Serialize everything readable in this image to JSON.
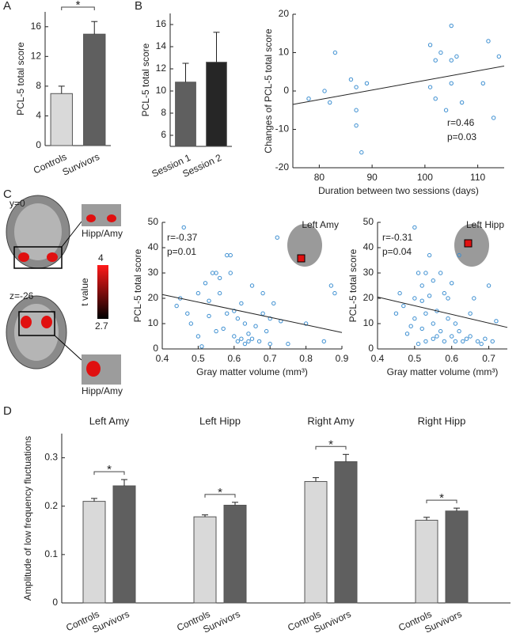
{
  "chart_data": [
    {
      "type": "bar",
      "panel": "A",
      "categories": [
        "Controls",
        "Survivors"
      ],
      "values": [
        7,
        15
      ],
      "errors": [
        1,
        1.7
      ],
      "colors": [
        "#d9d9d9",
        "#5f5f5f"
      ],
      "ylabel": "PCL-5 total score",
      "ylim": [
        0,
        18
      ],
      "yticks": [
        0,
        4,
        8,
        12,
        16
      ],
      "significance": "*"
    },
    {
      "type": "bar",
      "panel": "B",
      "categories": [
        "Session 1",
        "Session 2"
      ],
      "values": [
        10.8,
        12.6
      ],
      "errors": [
        1.7,
        2.7
      ],
      "colors": [
        "#5f5f5f",
        "#262626"
      ],
      "ylabel": "PCL-5 total score",
      "ylim": [
        5,
        17
      ],
      "yticks": [
        6,
        8,
        10,
        12,
        14,
        16
      ]
    },
    {
      "type": "scatter",
      "xlabel": "Duration between two sessions (days)",
      "ylabel": "Changes of PCL-5 total score",
      "x": [
        78,
        81,
        82,
        83,
        86,
        87,
        87,
        87,
        88,
        89,
        101,
        101,
        102,
        102,
        103,
        104,
        105,
        105,
        105,
        106,
        107,
        111,
        112,
        113,
        114
      ],
      "values": [
        -2,
        0,
        -3,
        10,
        3,
        1,
        -5,
        -9,
        -16,
        2,
        1,
        12,
        8,
        -2,
        10,
        -5,
        17,
        2,
        8,
        9,
        -3,
        2,
        13,
        -7,
        9
      ],
      "color": "#3d8fd1",
      "fit_line": {
        "x": [
          75,
          115
        ],
        "y": [
          -3.5,
          6.5
        ]
      },
      "stats": [
        "r=0.46",
        "p=0.03"
      ],
      "xlim": [
        75,
        115
      ],
      "xticks": [
        80,
        90,
        100,
        110
      ],
      "ylim": [
        -20,
        20
      ],
      "yticks": [
        -20,
        -10,
        0,
        10,
        20
      ]
    },
    {
      "type": "scatter",
      "xlabel": "Gray matter volume (mm³)",
      "ylabel": "PCL-5 total score",
      "region": "Left Amy",
      "x": [
        0.46,
        0.44,
        0.45,
        0.47,
        0.48,
        0.5,
        0.5,
        0.51,
        0.52,
        0.53,
        0.53,
        0.54,
        0.55,
        0.55,
        0.56,
        0.56,
        0.57,
        0.58,
        0.58,
        0.59,
        0.59,
        0.6,
        0.6,
        0.61,
        0.61,
        0.62,
        0.62,
        0.63,
        0.63,
        0.64,
        0.64,
        0.65,
        0.65,
        0.66,
        0.67,
        0.68,
        0.68,
        0.69,
        0.7,
        0.7,
        0.71,
        0.72,
        0.73,
        0.75,
        0.8,
        0.85,
        0.87,
        0.88
      ],
      "values": [
        48,
        17,
        20,
        14,
        10,
        5,
        22,
        1,
        26,
        13,
        19,
        30,
        30,
        7,
        28,
        22,
        8,
        14,
        37,
        37,
        30,
        5,
        15,
        3,
        12,
        4,
        18,
        2,
        10,
        3,
        6,
        4,
        25,
        9,
        3,
        22,
        14,
        7,
        12,
        2,
        18,
        44,
        11,
        2,
        10,
        3,
        25,
        22
      ],
      "color": "#3d8fd1",
      "fit_line": {
        "x": [
          0.4,
          0.9
        ],
        "y": [
          21.5,
          6.5
        ]
      },
      "stats": [
        "r=-0.37",
        "p=0.01"
      ],
      "xlim": [
        0.4,
        0.9
      ],
      "xticks": [
        0.4,
        0.5,
        0.6,
        0.7,
        0.8,
        0.9
      ],
      "ylim": [
        0,
        50
      ],
      "yticks": [
        0,
        10,
        20,
        30,
        40,
        50
      ]
    },
    {
      "type": "scatter",
      "xlabel": "Gray matter volume (mm³)",
      "ylabel": "PCL-5 total score",
      "region": "Left Hipp",
      "x": [
        0.45,
        0.46,
        0.47,
        0.48,
        0.49,
        0.5,
        0.5,
        0.5,
        0.51,
        0.51,
        0.52,
        0.52,
        0.52,
        0.53,
        0.53,
        0.53,
        0.54,
        0.54,
        0.55,
        0.55,
        0.55,
        0.56,
        0.56,
        0.57,
        0.57,
        0.58,
        0.58,
        0.59,
        0.59,
        0.6,
        0.6,
        0.61,
        0.61,
        0.62,
        0.62,
        0.63,
        0.64,
        0.65,
        0.65,
        0.66,
        0.67,
        0.68,
        0.69,
        0.7,
        0.71,
        0.72
      ],
      "values": [
        14,
        22,
        17,
        6,
        9,
        12,
        20,
        48,
        30,
        2,
        25,
        19,
        8,
        3,
        30,
        14,
        21,
        37,
        4,
        27,
        10,
        5,
        15,
        7,
        30,
        22,
        3,
        20,
        12,
        5,
        26,
        10,
        3,
        7,
        37,
        3,
        4,
        14,
        5,
        20,
        3,
        2,
        4,
        25,
        3,
        11
      ],
      "color": "#3d8fd1",
      "fit_line": {
        "x": [
          0.4,
          0.75
        ],
        "y": [
          20.5,
          8.5
        ]
      },
      "stats": [
        "r=-0.31",
        "p=0.04"
      ],
      "xlim": [
        0.4,
        0.75
      ],
      "xticks": [
        0.4,
        0.5,
        0.6,
        0.7
      ],
      "ylim": [
        0,
        50
      ],
      "yticks": [
        0,
        10,
        20,
        30,
        40,
        50
      ]
    },
    {
      "type": "grouped_bar",
      "panel": "D",
      "groups": [
        "Left Amy",
        "Left Hipp",
        "Right Amy",
        "Right Hipp"
      ],
      "series": [
        {
          "name": "Controls",
          "color": "#d9d9d9",
          "values": [
            0.21,
            0.178,
            0.251,
            0.171
          ],
          "errors": [
            0.006,
            0.004,
            0.008,
            0.006
          ]
        },
        {
          "name": "Survivors",
          "color": "#5f5f5f",
          "values": [
            0.242,
            0.202,
            0.292,
            0.19
          ],
          "errors": [
            0.013,
            0.006,
            0.015,
            0.006
          ]
        }
      ],
      "significance": [
        "*",
        "*",
        "*",
        "*"
      ],
      "ylabel": "Amplitude of low frequency fluctuations",
      "ylim": [
        0,
        0.35
      ],
      "yticks": [
        0,
        0.1,
        0.2,
        0.3
      ]
    }
  ],
  "panel_c": {
    "panel": "C",
    "coronal_label": "y=0",
    "axial_label": "z=-26",
    "inset_labels": [
      "Hipp/Amy",
      "Hipp/Amy"
    ],
    "colorbar": {
      "title": "t value",
      "max": "4",
      "min": "2.7"
    }
  }
}
